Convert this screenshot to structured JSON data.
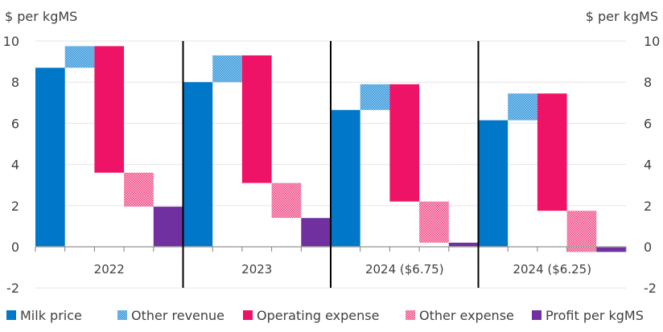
{
  "chart_data": {
    "type": "bar",
    "subtype": "waterfall",
    "title": "",
    "ylabel_left": "$ per kgMS",
    "ylabel_right": "$ per kgMS",
    "xlabel": "",
    "ylim": [
      -2,
      10
    ],
    "yticks": [
      -2,
      0,
      2,
      4,
      6,
      8,
      10
    ],
    "grid": true,
    "legend_position": "bottom",
    "categories": [
      "2022",
      "2023",
      "2024 ($6.75)",
      "2024 ($6.25)"
    ],
    "components": [
      "Milk price",
      "Other revenue",
      "Operating expense",
      "Other expense",
      "Profit per kgMS"
    ],
    "series": [
      {
        "name": "Milk price",
        "kind": "increase",
        "color": "#0077C8",
        "pattern": "solid",
        "values": [
          8.7,
          8.0,
          6.65,
          6.15
        ]
      },
      {
        "name": "Other revenue",
        "kind": "increase",
        "color": "#3A9BE0",
        "pattern": "dotted",
        "values": [
          1.05,
          1.3,
          1.25,
          1.3
        ]
      },
      {
        "name": "Operating expense",
        "kind": "decrease",
        "color": "#EE1366",
        "pattern": "solid",
        "values": [
          6.15,
          6.2,
          5.7,
          5.7
        ]
      },
      {
        "name": "Other expense",
        "kind": "decrease",
        "color": "#F25C94",
        "pattern": "dotted",
        "values": [
          1.65,
          1.7,
          2.0,
          2.0
        ]
      },
      {
        "name": "Profit per kgMS",
        "kind": "total",
        "color": "#7030A0",
        "pattern": "solid",
        "values": [
          1.95,
          1.4,
          0.2,
          -0.25
        ]
      }
    ]
  },
  "legend": {
    "items": [
      {
        "label": "Milk price",
        "color": "#0077C8",
        "pattern": "solid"
      },
      {
        "label": "Other revenue",
        "color": "#3A9BE0",
        "pattern": "dotted"
      },
      {
        "label": "Operating expense",
        "color": "#EE1366",
        "pattern": "solid"
      },
      {
        "label": "Other expense",
        "color": "#F25C94",
        "pattern": "dotted"
      },
      {
        "label": "Profit per kgMS",
        "color": "#7030A0",
        "pattern": "solid"
      }
    ]
  }
}
